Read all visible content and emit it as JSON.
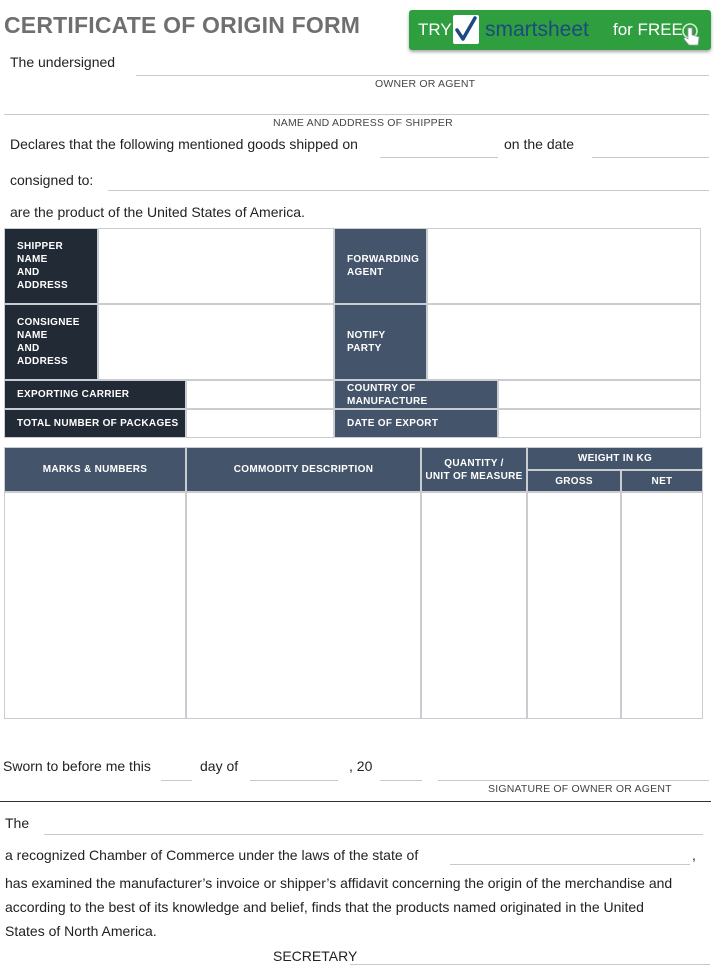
{
  "title": "CERTIFICATE OF ORIGIN FORM",
  "promo": {
    "try": "TRY",
    "brand": "smartsheet",
    "free": "for FREE"
  },
  "header": {
    "undersigned": "The undersigned",
    "owner_caption": "OWNER OR AGENT",
    "shipper_caption": "NAME AND ADDRESS OF SHIPPER",
    "declares": "Declares that the following mentioned goods shipped on",
    "on_date": "on the date",
    "consigned": "consigned to:",
    "product": "are the product of the United States of America."
  },
  "info": {
    "shipper": "SHIPPER\nNAME\nAND\nADDRESS",
    "forwarding": "FORWARDING\nAGENT",
    "consignee": "CONSIGNEE\nNAME\nAND\nADDRESS",
    "notify": "NOTIFY\nPARTY",
    "carrier": "EXPORTING CARRIER",
    "country": "COUNTRY OF MANUFACTURE",
    "packages": "TOTAL NUMBER OF PACKAGES",
    "export_date": "DATE OF EXPORT"
  },
  "goods": {
    "marks": "MARKS & NUMBERS",
    "commodity": "COMMODITY DESCRIPTION",
    "quantity": "QUANTITY /\nUNIT OF MEASURE",
    "weight": "WEIGHT IN KG",
    "gross": "GROSS",
    "net": "NET"
  },
  "sworn": {
    "text": "Sworn to before me this",
    "day_of": "day of",
    "year": ", 20",
    "sig_caption": "SIGNATURE OF OWNER OR AGENT"
  },
  "chamber": {
    "the": "The",
    "recognized": "a recognized Chamber of Commerce under the laws of the state of",
    "comma": ",",
    "examined": "has examined the manufacturer’s invoice or shipper’s affidavit concerning the origin of the merchandise and",
    "according": "according to the best of its knowledge and belief, finds that the products named originated in the United",
    "states": "States of North America.",
    "secretary": "SECRETARY"
  }
}
